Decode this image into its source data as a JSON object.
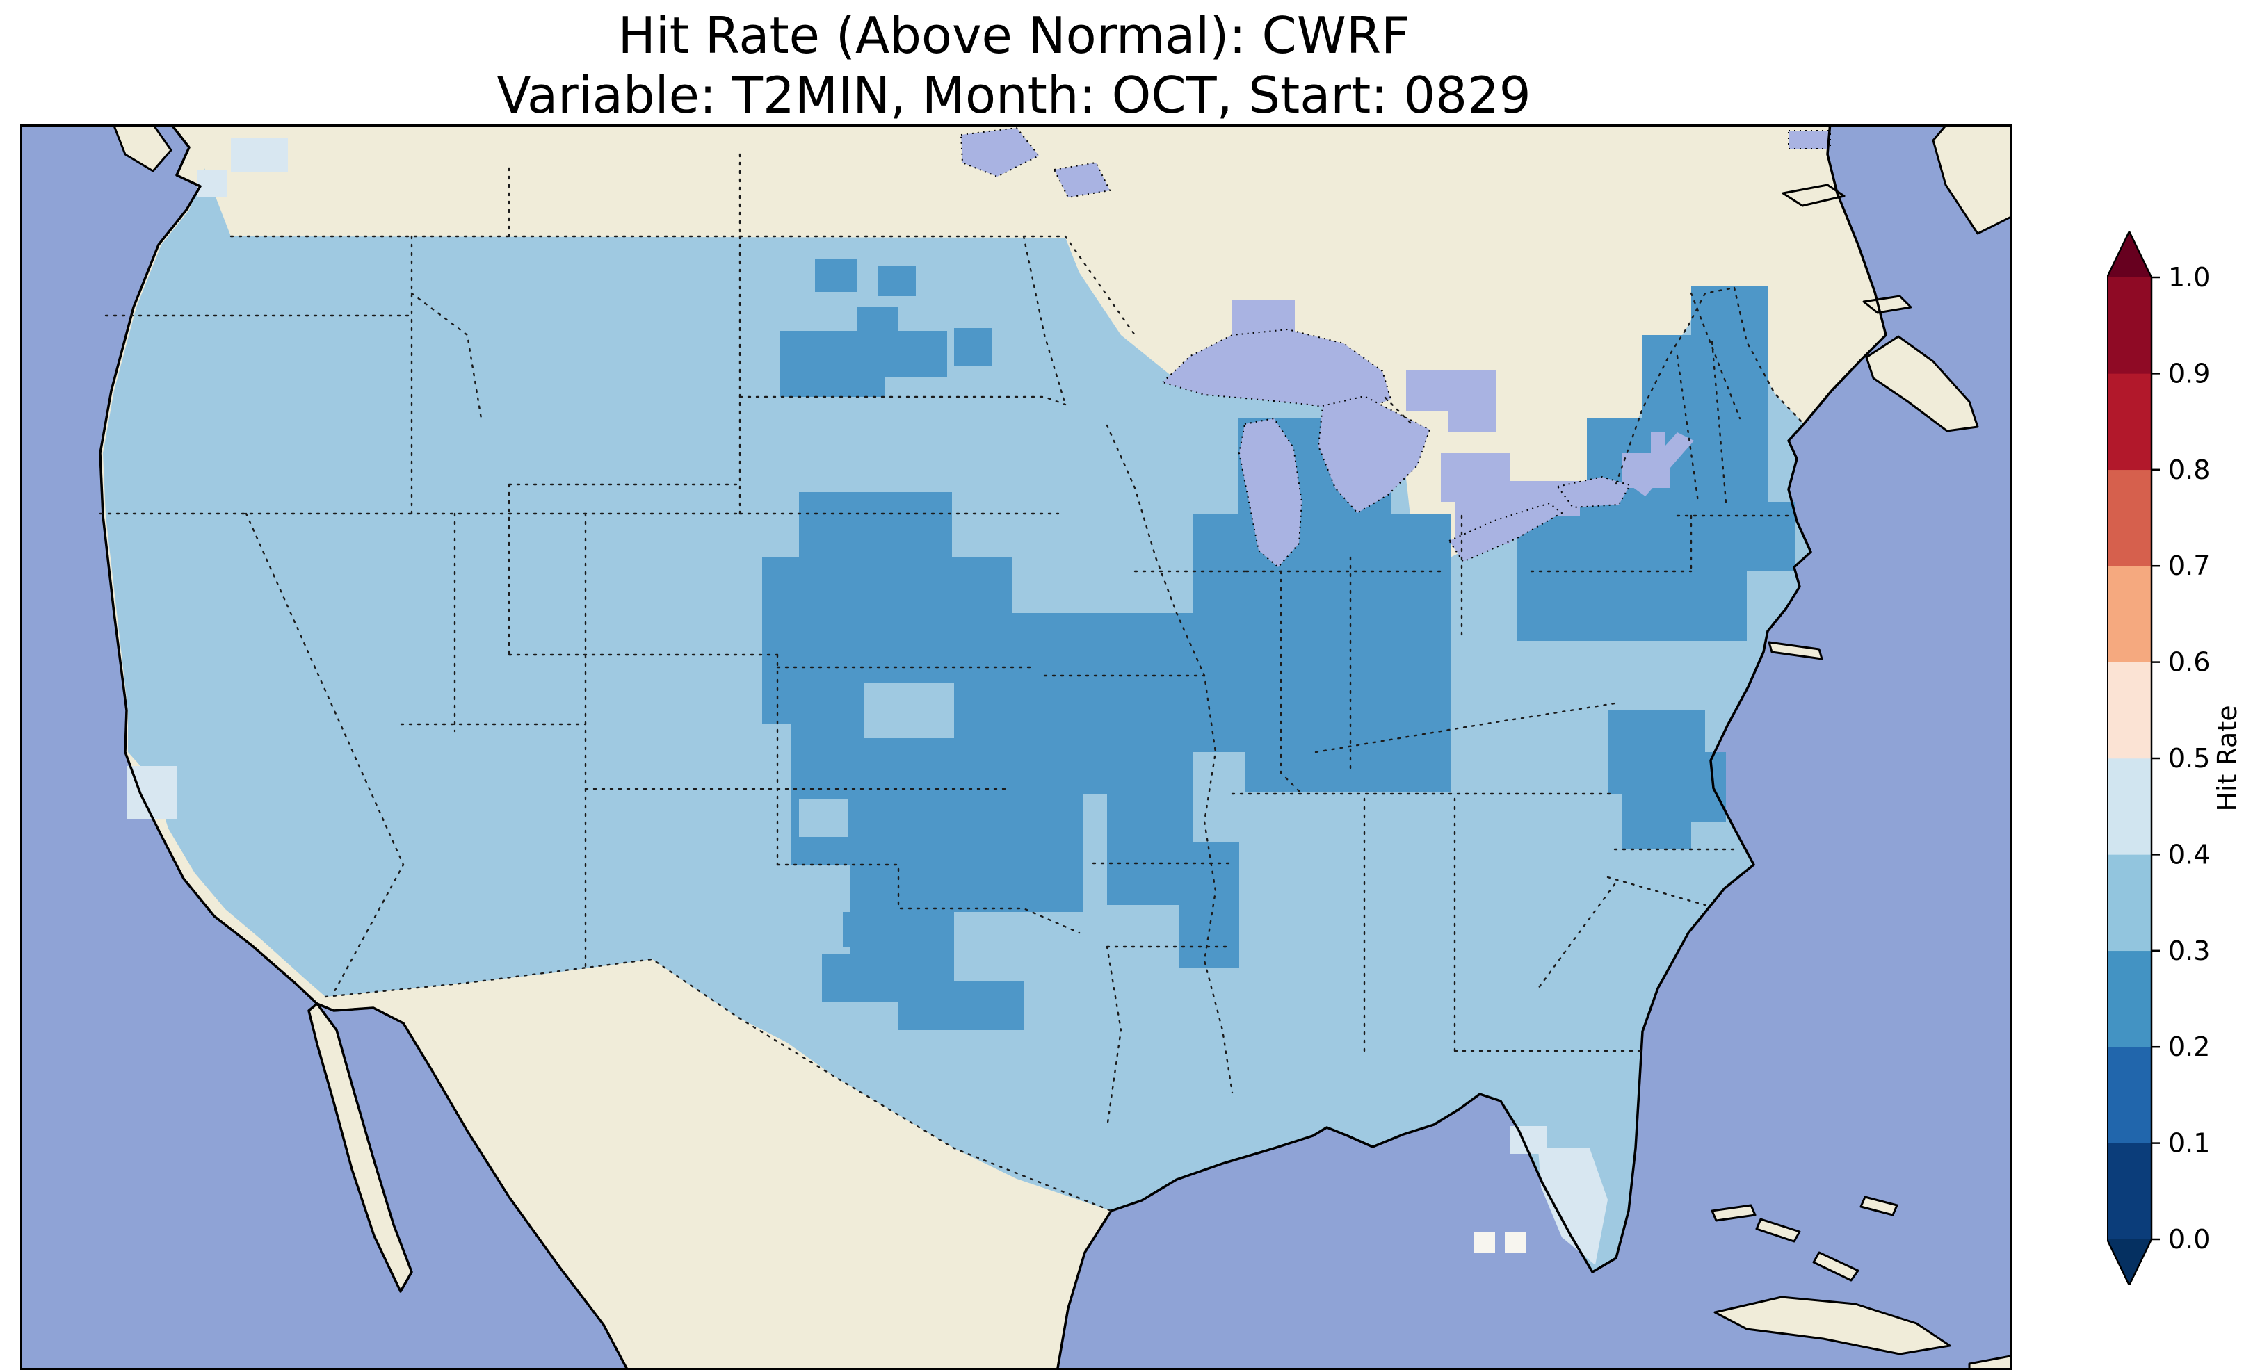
{
  "figure": {
    "title": "Hit Rate (Above Normal): CWRF",
    "subtitle": "Variable: T2MIN, Month: OCT, Start: 0829"
  },
  "colors": {
    "ocean": "#8fa3d6",
    "land": "#f0ecd9",
    "lake": "#a9b3e2",
    "rate_20_30": "#4e97c8",
    "rate_30_40": "#9fc9e1",
    "rate_40_50": "#d8e7f1",
    "rate_50_60": "#f7f5ef"
  },
  "chart_data": {
    "type": "heatmap",
    "title": "Hit Rate (Above Normal): CWRF",
    "subtitle": "Variable: T2MIN, Month: OCT, Start: 0829",
    "metric": "Hit Rate (Above Normal)",
    "model": "CWRF",
    "variable": "T2MIN",
    "month": "OCT",
    "start": "0829",
    "region": "Contiguous United States (gridded map, values shown as filled bins)",
    "colorbar": {
      "label": "Hit Rate",
      "ticks": [
        0.0,
        0.1,
        0.2,
        0.3,
        0.4,
        0.5,
        0.6,
        0.7,
        0.8,
        0.9,
        1.0
      ],
      "range": [
        0.0,
        1.0
      ],
      "extend": "both",
      "orientation": "vertical",
      "segment_colors_bottom_to_top": [
        "#0b3d7a",
        "#2166ac",
        "#4393c3",
        "#92c5de",
        "#d1e5f0",
        "#fbe3d4",
        "#f5a97f",
        "#d6604d",
        "#b2182b",
        "#8f0a25"
      ],
      "extend_low_color": "#053061",
      "extend_high_color": "#67001f"
    },
    "values_summary": [
      {
        "area": "Most of the western US, northern Plains fringe, Southeast and Gulf Coast states",
        "hit_rate_bin": "0.3-0.4"
      },
      {
        "area": "Central corridor: Kansas, Oklahoma, Missouri, southern Nebraska/Iowa, Illinois, Indiana, western Ohio, lower Michigan",
        "hit_rate_bin": "0.2-0.3"
      },
      {
        "area": "Northeast: New York, Pennsylvania, New England, interior Maine",
        "hit_rate_bin": "0.2-0.3"
      },
      {
        "area": "Dakotas pocket and scattered cells near the Canadian border",
        "hit_rate_bin": "0.2-0.3"
      },
      {
        "area": "Central Texas pocket",
        "hit_rate_bin": "0.2-0.3"
      },
      {
        "area": "Virginia / North Carolina coastal plain",
        "hit_rate_bin": "0.2-0.3"
      },
      {
        "area": "South Florida tip, scattered central California coast and Puget Sound cells",
        "hit_rate_bin": "0.4-0.5"
      },
      {
        "area": "Two isolated cells in far south Florida",
        "hit_rate_bin": "0.5-0.6"
      }
    ]
  }
}
